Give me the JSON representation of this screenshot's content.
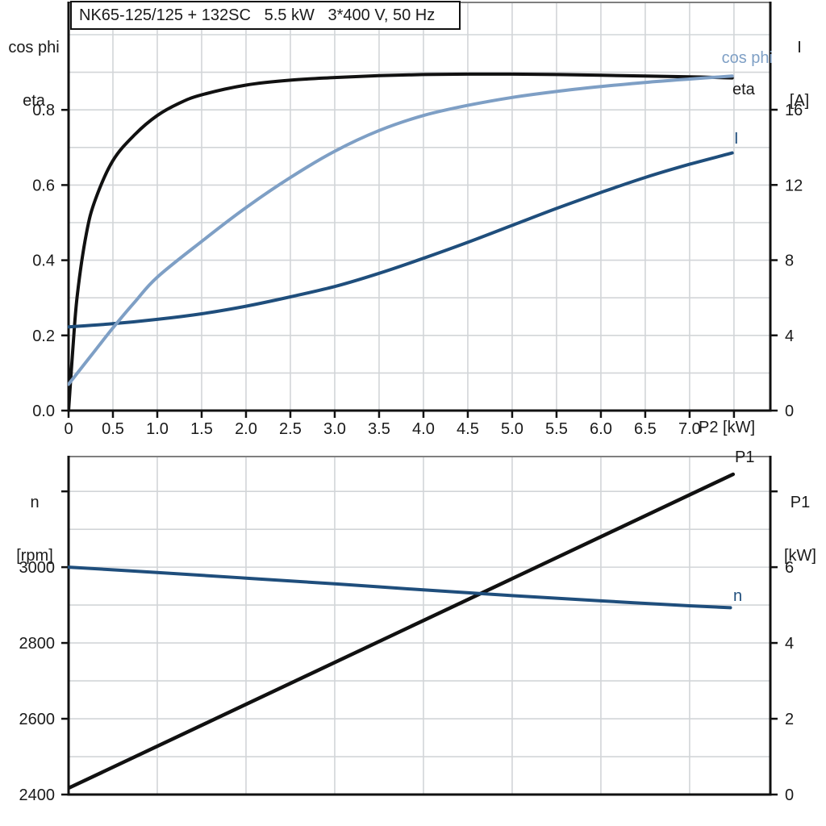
{
  "colors": {
    "black_curve": "#111111",
    "cos_phi_blue": "#7e9fc5",
    "dark_blue": "#1f4e7c",
    "grid": "#d2d5d8",
    "frame_top": "#7f7f7f",
    "axis": "#111111",
    "text": "#1a1a1a"
  },
  "chart_data": [
    {
      "type": "line",
      "title": "NK65-125/125 + 132SC   5.5 kW   3*400 V, 50 Hz",
      "xlabel": "P2 [kW]",
      "ylabel_left_lines": [
        "cos phi",
        "eta"
      ],
      "ylabel_right_lines": [
        "I",
        "[A]"
      ],
      "xlim": [
        0,
        7.91
      ],
      "ylim_left": [
        0,
        1.088
      ],
      "ylim_right": [
        0,
        21.75
      ],
      "grid": {
        "x_step": 0.5,
        "y_left_step": 0.1
      },
      "x_ticks": [
        0,
        0.5,
        1,
        1.5,
        2,
        2.5,
        3,
        3.5,
        4,
        4.5,
        5,
        5.5,
        6,
        6.5,
        7
      ],
      "x_tick_labels": [
        "0",
        "0.5",
        "1.0",
        "1.5",
        "2.0",
        "2.5",
        "3.0",
        "3.5",
        "4.0",
        "4.5",
        "5.0",
        "5.5",
        "6.0",
        "6.5",
        "7.0"
      ],
      "x_unlabeled_ticks": [
        7.5
      ],
      "y_left_ticks": [
        0.8,
        0.6,
        0.4,
        0.2,
        0
      ],
      "y_left_tick_labels": [
        "0.8",
        "0.6",
        "0.4",
        "0.2",
        "0.0"
      ],
      "y_left_unlabeled_ticks": [],
      "y_right_ticks": [
        16,
        12,
        8,
        4,
        0
      ],
      "y_right_tick_labels": [
        "16",
        "12",
        "8",
        "4",
        "0"
      ],
      "y_right_unlabeled_ticks": [],
      "series": [
        {
          "name": "eta",
          "label": "eta",
          "axis": "left",
          "color_key": "black_curve",
          "width": 4,
          "x": [
            0,
            0.05,
            0.1,
            0.2,
            0.3,
            0.5,
            0.75,
            1,
            1.25,
            1.5,
            2,
            2.5,
            3,
            3.5,
            4,
            4.5,
            5,
            5.5,
            6,
            6.5,
            7,
            7.48
          ],
          "y": [
            0,
            0.17,
            0.31,
            0.47,
            0.56,
            0.665,
            0.735,
            0.785,
            0.818,
            0.84,
            0.866,
            0.879,
            0.886,
            0.891,
            0.894,
            0.895,
            0.895,
            0.894,
            0.892,
            0.89,
            0.888,
            0.885
          ]
        },
        {
          "name": "I",
          "label": "I",
          "axis": "right",
          "color_key": "dark_blue",
          "width": 4,
          "x": [
            0,
            0.5,
            1,
            1.5,
            2,
            2.5,
            3,
            3.5,
            4,
            4.5,
            5,
            5.5,
            6,
            6.5,
            7,
            7.48
          ],
          "y": [
            4.45,
            4.62,
            4.85,
            5.15,
            5.55,
            6.05,
            6.6,
            7.3,
            8.1,
            8.95,
            9.85,
            10.75,
            11.6,
            12.4,
            13.1,
            13.7
          ]
        },
        {
          "name": "cos phi",
          "label": "cos phi",
          "axis": "left",
          "color_key": "cos_phi_blue",
          "width": 4,
          "x": [
            0,
            0.25,
            0.5,
            0.75,
            1,
            1.5,
            2,
            2.5,
            3,
            3.5,
            4,
            4.5,
            5,
            5.5,
            6,
            6.5,
            7,
            7.48
          ],
          "y": [
            0.07,
            0.145,
            0.22,
            0.29,
            0.355,
            0.45,
            0.54,
            0.62,
            0.69,
            0.745,
            0.785,
            0.812,
            0.833,
            0.849,
            0.862,
            0.873,
            0.882,
            0.89
          ]
        }
      ]
    },
    {
      "type": "line",
      "title": "",
      "xlabel": "",
      "ylabel_left_lines": [
        "n",
        "[rpm]"
      ],
      "ylabel_right_lines": [
        "P1",
        "[kW]"
      ],
      "xlim": [
        0,
        7.91
      ],
      "ylim_left": [
        2400,
        3294
      ],
      "ylim_right": [
        0,
        8.94
      ],
      "grid": {
        "x_step": 1.0,
        "y_left_step": 100
      },
      "x_ticks": [],
      "x_tick_labels": [],
      "x_unlabeled_ticks": [],
      "y_left_ticks": [
        3000,
        2800,
        2600,
        2400
      ],
      "y_left_tick_labels": [
        "3000",
        "2800",
        "2600",
        "2400"
      ],
      "y_left_unlabeled_ticks": [
        3200
      ],
      "y_right_ticks": [
        6,
        4,
        2,
        0
      ],
      "y_right_tick_labels": [
        "6",
        "4",
        "2",
        "0"
      ],
      "y_right_unlabeled_ticks": [
        8
      ],
      "series": [
        {
          "name": "P1",
          "label": "P1",
          "axis": "right",
          "color_key": "black_curve",
          "width": 4.5,
          "x": [
            0,
            7.49
          ],
          "y": [
            0.17,
            8.45
          ]
        },
        {
          "name": "n",
          "label": "n",
          "axis": "left",
          "color_key": "dark_blue",
          "width": 4,
          "x": [
            0,
            1,
            2,
            3,
            4,
            5,
            6,
            7,
            7.46
          ],
          "y": [
            3000,
            2986,
            2971,
            2956,
            2940,
            2925,
            2911,
            2898,
            2893
          ]
        }
      ]
    }
  ]
}
